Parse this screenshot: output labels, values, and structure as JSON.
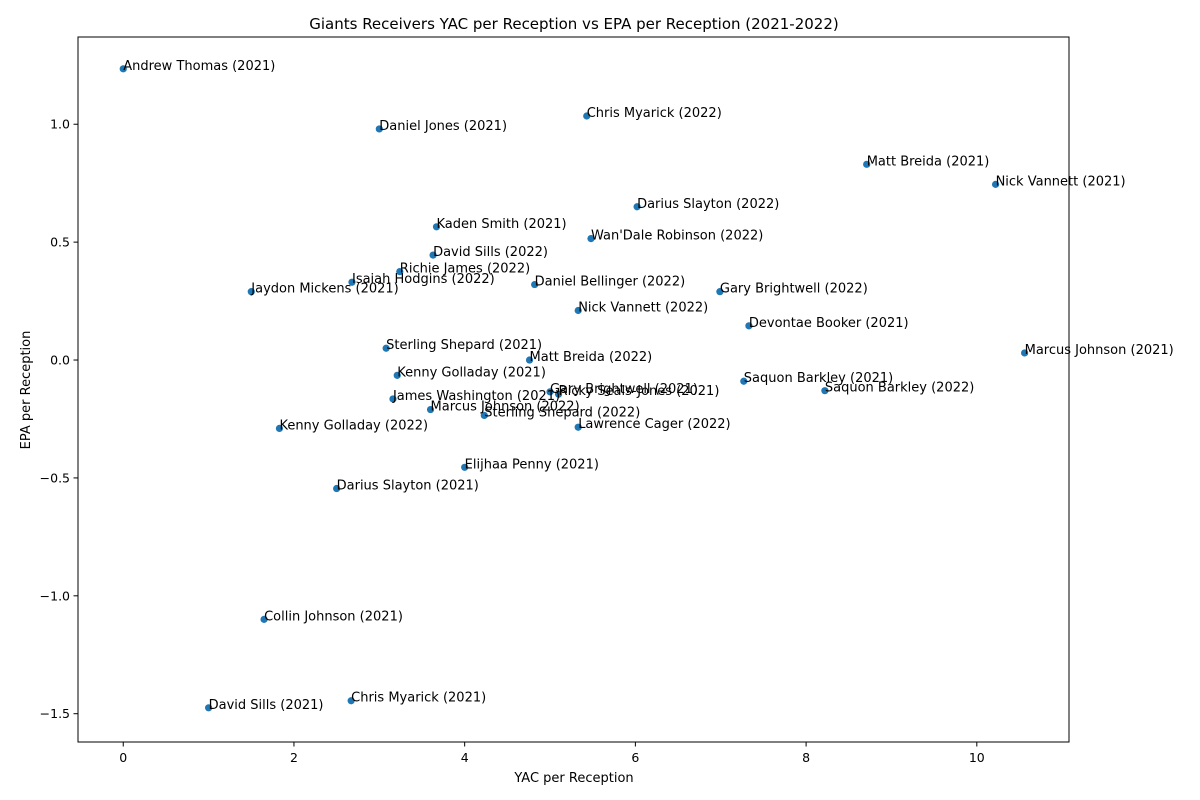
{
  "chart_data": {
    "type": "scatter",
    "title": "Giants Receivers YAC per Reception vs EPA per Reception (2021-2022)",
    "xlabel": "YAC per Reception",
    "ylabel": "EPA per Reception",
    "xlim": [
      -0.53,
      11.08
    ],
    "ylim": [
      -1.62,
      1.37
    ],
    "xticks": [
      0,
      2,
      4,
      6,
      8,
      10
    ],
    "yticks": [
      -1.5,
      -1.0,
      -0.5,
      0.0,
      0.5,
      1.0
    ],
    "xtick_labels": [
      "0",
      "2",
      "4",
      "6",
      "8",
      "10"
    ],
    "ytick_labels": [
      "−1.5",
      "−1.0",
      "−0.5",
      "0.0",
      "0.5",
      "1.0"
    ],
    "grid": false,
    "color": "#1f77b4",
    "points": [
      {
        "label": "Andrew Thomas (2021)",
        "x": 0.0,
        "y": 1.235
      },
      {
        "label": "Chris Myarick (2022)",
        "x": 5.43,
        "y": 1.035
      },
      {
        "label": "Daniel Jones (2021)",
        "x": 3.0,
        "y": 0.98
      },
      {
        "label": "Matt Breida (2021)",
        "x": 8.71,
        "y": 0.83
      },
      {
        "label": "Nick Vannett (2021)",
        "x": 10.22,
        "y": 0.745
      },
      {
        "label": "Darius Slayton (2022)",
        "x": 6.02,
        "y": 0.65
      },
      {
        "label": "Kaden Smith (2021)",
        "x": 3.67,
        "y": 0.565
      },
      {
        "label": "Wan'Dale Robinson (2022)",
        "x": 5.48,
        "y": 0.515
      },
      {
        "label": "David Sills (2022)",
        "x": 3.63,
        "y": 0.445
      },
      {
        "label": "Richie James (2022)",
        "x": 3.24,
        "y": 0.375
      },
      {
        "label": "Isaiah Hodgins (2022)",
        "x": 2.68,
        "y": 0.33
      },
      {
        "label": "Daniel Bellinger (2022)",
        "x": 4.82,
        "y": 0.32
      },
      {
        "label": "Jaydon Mickens (2021)",
        "x": 1.5,
        "y": 0.29
      },
      {
        "label": "Gary Brightwell (2022)",
        "x": 6.99,
        "y": 0.29
      },
      {
        "label": "Nick Vannett (2022)",
        "x": 5.33,
        "y": 0.21
      },
      {
        "label": "Devontae Booker (2021)",
        "x": 7.33,
        "y": 0.145
      },
      {
        "label": "Sterling Shepard (2021)",
        "x": 3.08,
        "y": 0.05
      },
      {
        "label": "Marcus Johnson (2021)",
        "x": 10.56,
        "y": 0.03
      },
      {
        "label": "Matt Breida (2022)",
        "x": 4.76,
        "y": 0.0
      },
      {
        "label": "Kenny Golladay (2021)",
        "x": 3.21,
        "y": -0.065
      },
      {
        "label": "Saquon Barkley (2021)",
        "x": 7.27,
        "y": -0.09
      },
      {
        "label": "Saquon Barkley (2022)",
        "x": 8.22,
        "y": -0.13
      },
      {
        "label": "Gary Brightwell (2021)",
        "x": 5.0,
        "y": -0.135
      },
      {
        "label": "Ricky Seals-Jones (2021)",
        "x": 5.1,
        "y": -0.145
      },
      {
        "label": "James Washington (2021)",
        "x": 3.16,
        "y": -0.165
      },
      {
        "label": "Marcus Johnson (2022)",
        "x": 3.6,
        "y": -0.21
      },
      {
        "label": "Sterling Shepard (2022)",
        "x": 4.23,
        "y": -0.235
      },
      {
        "label": "Lawrence Cager (2022)",
        "x": 5.33,
        "y": -0.285
      },
      {
        "label": "Kenny Golladay (2022)",
        "x": 1.83,
        "y": -0.29
      },
      {
        "label": "Elijhaa Penny (2021)",
        "x": 4.0,
        "y": -0.455
      },
      {
        "label": "Darius Slayton (2021)",
        "x": 2.5,
        "y": -0.545
      },
      {
        "label": "Collin Johnson (2021)",
        "x": 1.65,
        "y": -1.1
      },
      {
        "label": "Chris Myarick (2021)",
        "x": 2.67,
        "y": -1.445
      },
      {
        "label": "David Sills (2021)",
        "x": 1.0,
        "y": -1.475
      }
    ]
  }
}
